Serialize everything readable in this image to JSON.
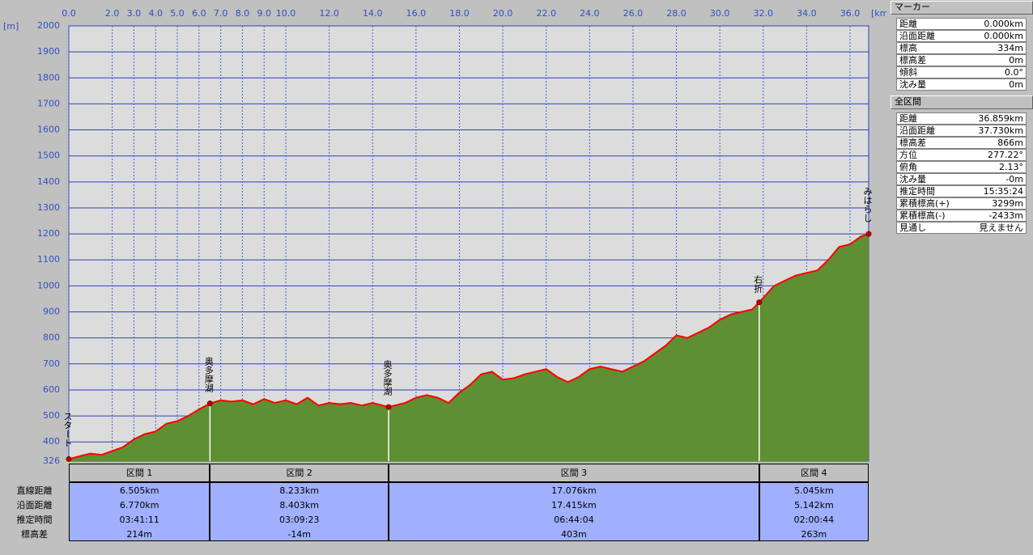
{
  "chart_data": {
    "type": "area",
    "y_unit": "[m]",
    "x_unit": "[km]",
    "xlim": [
      0,
      36.859
    ],
    "ylim": [
      326,
      2000
    ],
    "xticks": [
      {
        "value": 0,
        "label": "0.0"
      },
      {
        "value": 2,
        "label": "2.0"
      },
      {
        "value": 3,
        "label": "3.0"
      },
      {
        "value": 4,
        "label": "4.0"
      },
      {
        "value": 5,
        "label": "5.0"
      },
      {
        "value": 6,
        "label": "6.0"
      },
      {
        "value": 7,
        "label": "7.0"
      },
      {
        "value": 8,
        "label": "8.0"
      },
      {
        "value": 9,
        "label": "9.0"
      },
      {
        "value": 10,
        "label": "10.0"
      },
      {
        "value": 12,
        "label": "12.0"
      },
      {
        "value": 14,
        "label": "14.0"
      },
      {
        "value": 16,
        "label": "16.0"
      },
      {
        "value": 18,
        "label": "18.0"
      },
      {
        "value": 20,
        "label": "20.0"
      },
      {
        "value": 22,
        "label": "22.0"
      },
      {
        "value": 24,
        "label": "24.0"
      },
      {
        "value": 26,
        "label": "26.0"
      },
      {
        "value": 28,
        "label": "28.0"
      },
      {
        "value": 30,
        "label": "30.0"
      },
      {
        "value": 32,
        "label": "32.0"
      },
      {
        "value": 34,
        "label": "34.0"
      },
      {
        "value": 36,
        "label": "36.0"
      }
    ],
    "yticks": [
      326,
      400,
      500,
      600,
      700,
      800,
      900,
      1000,
      1100,
      1200,
      1300,
      1400,
      1500,
      1600,
      1700,
      1800,
      1900,
      2000
    ],
    "grid": true,
    "x": [
      0,
      0.5,
      1.0,
      1.5,
      2.0,
      2.5,
      3.0,
      3.5,
      4.0,
      4.5,
      5.0,
      5.5,
      6.0,
      6.505,
      7.0,
      7.5,
      8.0,
      8.5,
      9.0,
      9.5,
      10.0,
      10.5,
      11.0,
      11.5,
      12.0,
      12.5,
      13.0,
      13.5,
      14.0,
      14.738,
      15.5,
      16.0,
      16.5,
      17.0,
      17.5,
      18.0,
      18.5,
      19.0,
      19.5,
      20.0,
      20.5,
      21.0,
      21.5,
      22.0,
      22.5,
      23.0,
      23.5,
      24.0,
      24.5,
      25.0,
      25.5,
      26.0,
      26.5,
      27.0,
      27.5,
      28.0,
      28.5,
      29.0,
      29.5,
      30.0,
      30.5,
      31.0,
      31.5,
      31.814,
      32.5,
      33.0,
      33.5,
      34.0,
      34.5,
      35.0,
      35.5,
      36.0,
      36.5,
      36.859
    ],
    "series": [
      {
        "color": "#ff0000",
        "fill": "#5e8f32",
        "values": [
          334,
          345,
          355,
          350,
          365,
          380,
          410,
          430,
          440,
          470,
          480,
          500,
          525,
          548,
          560,
          555,
          560,
          545,
          565,
          550,
          560,
          545,
          570,
          540,
          550,
          545,
          550,
          540,
          550,
          534,
          550,
          570,
          580,
          570,
          550,
          590,
          620,
          660,
          670,
          640,
          645,
          660,
          670,
          680,
          650,
          630,
          650,
          680,
          690,
          680,
          670,
          690,
          710,
          740,
          770,
          810,
          800,
          820,
          840,
          870,
          890,
          900,
          910,
          937,
          1000,
          1020,
          1040,
          1050,
          1060,
          1100,
          1150,
          1160,
          1190,
          1200
        ]
      }
    ],
    "annotations": [
      {
        "label": "スタート",
        "x": 0
      },
      {
        "label": "奥多摩湖",
        "x": 6.505
      },
      {
        "label": "奥多摩湖",
        "x": 14.738
      },
      {
        "label": "右折",
        "x": 31.814
      },
      {
        "label": "みはらし",
        "x": 36.859
      }
    ]
  },
  "sections": {
    "row_labels": [
      "直線距離",
      "沿面距離",
      "推定時間",
      "標高差"
    ],
    "columns": [
      {
        "header": "区間 1",
        "values": [
          "6.505km",
          "6.770km",
          "03:41:11",
          "214m"
        ]
      },
      {
        "header": "区間 2",
        "values": [
          "8.233km",
          "8.403km",
          "03:09:23",
          "-14m"
        ]
      },
      {
        "header": "区間 3",
        "values": [
          "17.076km",
          "17.415km",
          "06:44:04",
          "403m"
        ]
      },
      {
        "header": "区間 4",
        "values": [
          "5.045km",
          "5.142km",
          "02:00:44",
          "263m"
        ]
      }
    ]
  },
  "marker_panel": {
    "title": "マーカー",
    "rows": [
      [
        "距離",
        "0.000km"
      ],
      [
        "沿面距離",
        "0.000km"
      ],
      [
        "標高",
        "334m"
      ],
      [
        "標高差",
        "0m"
      ],
      [
        "傾斜",
        "0.0°"
      ],
      [
        "沈み量",
        "0m"
      ]
    ]
  },
  "total_panel": {
    "title": "全区間",
    "rows": [
      [
        "距離",
        "36.859km"
      ],
      [
        "沿面距離",
        "37.730km"
      ],
      [
        "標高差",
        "866m"
      ],
      [
        "方位",
        "277.22°"
      ],
      [
        "俯角",
        "2.13°"
      ],
      [
        "沈み量",
        "-0m"
      ],
      [
        "推定時間",
        "15:35:24"
      ],
      [
        "累積標高(+)",
        "3299m"
      ],
      [
        "累積標高(-)",
        "-2433m"
      ],
      [
        "見通し",
        "見えません"
      ]
    ]
  }
}
